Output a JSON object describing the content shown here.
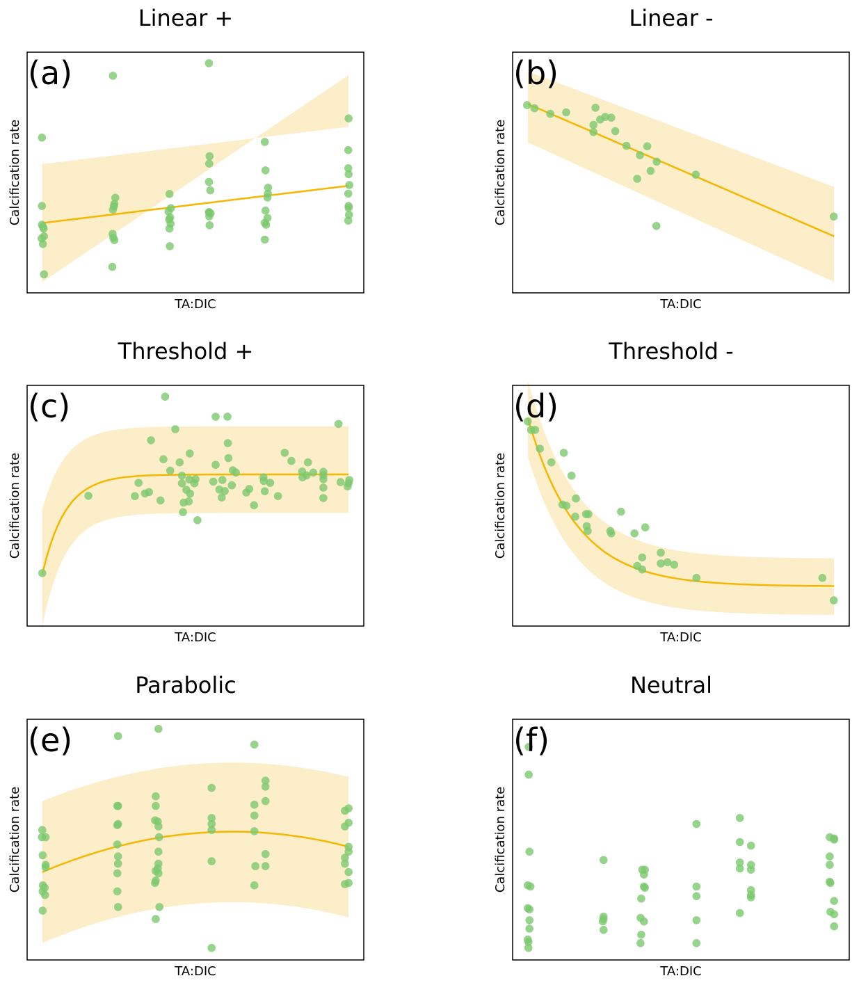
{
  "style": {
    "point_color": "#7cc86e",
    "line_color": "#f5b700",
    "band_color": "#fceec9",
    "frame_color": "#000000"
  },
  "chart_data": [
    {
      "type": "scatter",
      "panel": "(a)",
      "title": "Linear +",
      "xlabel": "TA:DIC",
      "ylabel": "Calcification rate",
      "xlim": [
        0,
        1
      ],
      "ylim": [
        0,
        1
      ],
      "points": [
        [
          0.044,
          0.645
        ],
        [
          0.044,
          0.361
        ],
        [
          0.044,
          0.283
        ],
        [
          0.047,
          0.275
        ],
        [
          0.043,
          0.226
        ],
        [
          0.047,
          0.203
        ],
        [
          0.05,
          0.235
        ],
        [
          0.049,
          0.267
        ],
        [
          0.05,
          0.077
        ],
        [
          0.255,
          0.902
        ],
        [
          0.262,
          0.395
        ],
        [
          0.259,
          0.37
        ],
        [
          0.255,
          0.346
        ],
        [
          0.258,
          0.36
        ],
        [
          0.254,
          0.245
        ],
        [
          0.256,
          0.229
        ],
        [
          0.259,
          0.219
        ],
        [
          0.253,
          0.108
        ],
        [
          0.423,
          0.411
        ],
        [
          0.427,
          0.352
        ],
        [
          0.42,
          0.338
        ],
        [
          0.422,
          0.305
        ],
        [
          0.426,
          0.287
        ],
        [
          0.423,
          0.267
        ],
        [
          0.425,
          0.313
        ],
        [
          0.424,
          0.194
        ],
        [
          0.54,
          0.954
        ],
        [
          0.542,
          0.568
        ],
        [
          0.541,
          0.537
        ],
        [
          0.54,
          0.461
        ],
        [
          0.544,
          0.426
        ],
        [
          0.541,
          0.335
        ],
        [
          0.545,
          0.33
        ],
        [
          0.542,
          0.281
        ],
        [
          0.54,
          0.335
        ],
        [
          0.541,
          0.318
        ],
        [
          0.706,
          0.627
        ],
        [
          0.708,
          0.509
        ],
        [
          0.716,
          0.437
        ],
        [
          0.715,
          0.412
        ],
        [
          0.714,
          0.396
        ],
        [
          0.708,
          0.342
        ],
        [
          0.714,
          0.311
        ],
        [
          0.706,
          0.291
        ],
        [
          0.71,
          0.283
        ],
        [
          0.706,
          0.221
        ],
        [
          0.955,
          0.725
        ],
        [
          0.954,
          0.593
        ],
        [
          0.954,
          0.518
        ],
        [
          0.955,
          0.493
        ],
        [
          0.957,
          0.448
        ],
        [
          0.954,
          0.412
        ],
        [
          0.955,
          0.361
        ],
        [
          0.956,
          0.324
        ],
        [
          0.955,
          0.353
        ],
        [
          0.954,
          0.3
        ]
      ],
      "fit": {
        "model": "linear",
        "x": [
          0.045,
          0.955
        ],
        "y": [
          0.29,
          0.445
        ],
        "band_lower": [
          0.045,
          0.905
        ],
        "band_upper": [
          0.535,
          0.69
        ]
      }
    },
    {
      "type": "scatter",
      "panel": "(b)",
      "title": "Linear -",
      "xlabel": "TA:DIC",
      "ylabel": "Calcification rate",
      "xlim": [
        0,
        1
      ],
      "ylim": [
        0,
        1
      ],
      "points": [
        [
          0.043,
          0.78
        ],
        [
          0.065,
          0.767
        ],
        [
          0.112,
          0.744
        ],
        [
          0.159,
          0.75
        ],
        [
          0.246,
          0.769
        ],
        [
          0.24,
          0.698
        ],
        [
          0.24,
          0.668
        ],
        [
          0.26,
          0.72
        ],
        [
          0.275,
          0.731
        ],
        [
          0.293,
          0.728
        ],
        [
          0.305,
          0.672
        ],
        [
          0.338,
          0.611
        ],
        [
          0.4,
          0.609
        ],
        [
          0.41,
          0.507
        ],
        [
          0.378,
          0.572
        ],
        [
          0.37,
          0.474
        ],
        [
          0.428,
          0.545
        ],
        [
          0.544,
          0.491
        ],
        [
          0.427,
          0.278
        ],
        [
          0.954,
          0.317
        ]
      ],
      "fit": {
        "model": "linear",
        "x": [
          0.045,
          0.955
        ],
        "y": [
          0.785,
          0.235
        ],
        "band_lower": [
          0.625,
          0.045
        ],
        "band_upper": [
          0.92,
          0.44
        ]
      }
    },
    {
      "type": "scatter",
      "panel": "(c)",
      "title": "Threshold +",
      "xlabel": "TA:DIC",
      "ylabel": "Calcification rate",
      "xlim": [
        0,
        1
      ],
      "ylim": [
        0,
        1
      ],
      "points": [
        [
          0.045,
          0.22
        ],
        [
          0.182,
          0.541
        ],
        [
          0.41,
          0.953
        ],
        [
          0.44,
          0.818
        ],
        [
          0.56,
          0.87
        ],
        [
          0.595,
          0.87
        ],
        [
          0.925,
          0.84
        ],
        [
          0.368,
          0.772
        ],
        [
          0.425,
          0.646
        ],
        [
          0.483,
          0.717
        ],
        [
          0.453,
          0.68
        ],
        [
          0.405,
          0.693
        ],
        [
          0.331,
          0.595
        ],
        [
          0.35,
          0.551
        ],
        [
          0.362,
          0.557
        ],
        [
          0.32,
          0.54
        ],
        [
          0.396,
          0.522
        ],
        [
          0.482,
          0.609
        ],
        [
          0.46,
          0.625
        ],
        [
          0.5,
          0.61
        ],
        [
          0.46,
          0.593
        ],
        [
          0.497,
          0.593
        ],
        [
          0.465,
          0.513
        ],
        [
          0.463,
          0.473
        ],
        [
          0.48,
          0.518
        ],
        [
          0.473,
          0.566
        ],
        [
          0.484,
          0.55
        ],
        [
          0.506,
          0.44
        ],
        [
          0.56,
          0.67
        ],
        [
          0.598,
          0.698
        ],
        [
          0.596,
          0.76
        ],
        [
          0.553,
          0.6
        ],
        [
          0.58,
          0.607
        ],
        [
          0.608,
          0.585
        ],
        [
          0.611,
          0.647
        ],
        [
          0.62,
          0.638
        ],
        [
          0.571,
          0.567
        ],
        [
          0.578,
          0.534
        ],
        [
          0.587,
          0.561
        ],
        [
          0.651,
          0.555
        ],
        [
          0.66,
          0.57
        ],
        [
          0.674,
          0.502
        ],
        [
          0.702,
          0.618
        ],
        [
          0.703,
          0.603
        ],
        [
          0.722,
          0.595
        ],
        [
          0.706,
          0.56
        ],
        [
          0.745,
          0.54
        ],
        [
          0.765,
          0.72
        ],
        [
          0.785,
          0.686
        ],
        [
          0.817,
          0.642
        ],
        [
          0.818,
          0.618
        ],
        [
          0.834,
          0.68
        ],
        [
          0.85,
          0.638
        ],
        [
          0.83,
          0.626
        ],
        [
          0.88,
          0.641
        ],
        [
          0.88,
          0.627
        ],
        [
          0.88,
          0.61
        ],
        [
          0.88,
          0.575
        ],
        [
          0.88,
          0.532
        ],
        [
          0.931,
          0.598
        ],
        [
          0.957,
          0.607
        ],
        [
          0.955,
          0.594
        ],
        [
          0.952,
          0.58
        ]
      ],
      "fit": {
        "model": "threshold",
        "x0": 0.045,
        "x1": 0.955,
        "y0": 0.215,
        "plateau": 0.63,
        "rate": 14.6,
        "band_lower_offset": -0.16,
        "band_upper_offset": 0.2
      }
    },
    {
      "type": "scatter",
      "panel": "(d)",
      "title": "Threshold -",
      "xlabel": "TA:DIC",
      "ylabel": "Calcification rate",
      "xlim": [
        0,
        1
      ],
      "ylim": [
        0,
        1
      ],
      "points": [
        [
          0.045,
          0.85
        ],
        [
          0.055,
          0.815
        ],
        [
          0.067,
          0.815
        ],
        [
          0.081,
          0.737
        ],
        [
          0.115,
          0.68
        ],
        [
          0.152,
          0.72
        ],
        [
          0.175,
          0.625
        ],
        [
          0.148,
          0.505
        ],
        [
          0.16,
          0.5
        ],
        [
          0.188,
          0.53
        ],
        [
          0.186,
          0.455
        ],
        [
          0.218,
          0.465
        ],
        [
          0.225,
          0.465
        ],
        [
          0.22,
          0.415
        ],
        [
          0.223,
          0.395
        ],
        [
          0.29,
          0.395
        ],
        [
          0.293,
          0.385
        ],
        [
          0.322,
          0.475
        ],
        [
          0.362,
          0.385
        ],
        [
          0.394,
          0.41
        ],
        [
          0.385,
          0.285
        ],
        [
          0.385,
          0.235
        ],
        [
          0.37,
          0.25
        ],
        [
          0.44,
          0.305
        ],
        [
          0.44,
          0.26
        ],
        [
          0.46,
          0.265
        ],
        [
          0.48,
          0.255
        ],
        [
          0.546,
          0.2
        ],
        [
          0.92,
          0.2
        ],
        [
          0.954,
          0.107
        ]
      ],
      "fit": {
        "model": "threshold",
        "x0": 0.045,
        "x1": 0.955,
        "y0": 0.865,
        "plateau": 0.165,
        "rate": 6.95,
        "band_lower_offset": -0.12,
        "band_upper_offset": 0.115
      }
    },
    {
      "type": "scatter",
      "panel": "(e)",
      "title": "Parabolic",
      "xlabel": "TA:DIC",
      "ylabel": "Calcification rate",
      "xlim": [
        0,
        1
      ],
      "ylim": [
        0,
        1
      ],
      "points": [
        [
          0.045,
          0.54
        ],
        [
          0.044,
          0.51
        ],
        [
          0.055,
          0.51
        ],
        [
          0.046,
          0.435
        ],
        [
          0.055,
          0.395
        ],
        [
          0.055,
          0.385
        ],
        [
          0.047,
          0.31
        ],
        [
          0.046,
          0.285
        ],
        [
          0.052,
          0.3
        ],
        [
          0.053,
          0.27
        ],
        [
          0.046,
          0.205
        ],
        [
          0.27,
          0.93
        ],
        [
          0.27,
          0.64
        ],
        [
          0.268,
          0.64
        ],
        [
          0.268,
          0.56
        ],
        [
          0.27,
          0.565
        ],
        [
          0.268,
          0.48
        ],
        [
          0.27,
          0.43
        ],
        [
          0.27,
          0.4
        ],
        [
          0.268,
          0.36
        ],
        [
          0.268,
          0.285
        ],
        [
          0.27,
          0.22
        ],
        [
          0.39,
          0.96
        ],
        [
          0.382,
          0.68
        ],
        [
          0.382,
          0.64
        ],
        [
          0.38,
          0.58
        ],
        [
          0.388,
          0.575
        ],
        [
          0.39,
          0.555
        ],
        [
          0.392,
          0.51
        ],
        [
          0.39,
          0.45
        ],
        [
          0.39,
          0.4
        ],
        [
          0.39,
          0.36
        ],
        [
          0.382,
          0.37
        ],
        [
          0.382,
          0.33
        ],
        [
          0.388,
          0.38
        ],
        [
          0.38,
          0.32
        ],
        [
          0.393,
          0.22
        ],
        [
          0.382,
          0.17
        ],
        [
          0.548,
          0.715
        ],
        [
          0.548,
          0.59
        ],
        [
          0.548,
          0.565
        ],
        [
          0.548,
          0.54
        ],
        [
          0.548,
          0.41
        ],
        [
          0.548,
          0.05
        ],
        [
          0.675,
          0.895
        ],
        [
          0.675,
          0.645
        ],
        [
          0.675,
          0.6
        ],
        [
          0.675,
          0.535
        ],
        [
          0.675,
          0.31
        ],
        [
          0.678,
          0.39
        ],
        [
          0.708,
          0.745
        ],
        [
          0.708,
          0.72
        ],
        [
          0.708,
          0.66
        ],
        [
          0.708,
          0.44
        ],
        [
          0.708,
          0.39
        ],
        [
          0.944,
          0.62
        ],
        [
          0.955,
          0.63
        ],
        [
          0.955,
          0.57
        ],
        [
          0.944,
          0.555
        ],
        [
          0.955,
          0.47
        ],
        [
          0.955,
          0.45
        ],
        [
          0.944,
          0.425
        ],
        [
          0.944,
          0.4
        ],
        [
          0.955,
          0.365
        ],
        [
          0.944,
          0.315
        ],
        [
          0.955,
          0.32
        ]
      ],
      "fit": {
        "model": "quadratic",
        "x0": 0.045,
        "x1": 0.955,
        "vertex_x": 0.61,
        "vertex_y": 0.533,
        "y_at_x0": 0.365,
        "band_lower_vertex": 0.24,
        "band_lower_at_x0": 0.07,
        "band_upper_vertex": 0.82,
        "band_upper_at_x0": 0.66
      }
    },
    {
      "type": "scatter",
      "panel": "(f)",
      "title": "Neutral",
      "xlabel": "TA:DIC",
      "ylabel": "Calcification rate",
      "xlim": [
        0,
        1
      ],
      "ylim": [
        0,
        1
      ],
      "points": [
        [
          0.048,
          0.885
        ],
        [
          0.048,
          0.77
        ],
        [
          0.05,
          0.45
        ],
        [
          0.045,
          0.31
        ],
        [
          0.053,
          0.305
        ],
        [
          0.045,
          0.215
        ],
        [
          0.05,
          0.21
        ],
        [
          0.05,
          0.165
        ],
        [
          0.05,
          0.13
        ],
        [
          0.045,
          0.085
        ],
        [
          0.047,
          0.075
        ],
        [
          0.047,
          0.05
        ],
        [
          0.27,
          0.415
        ],
        [
          0.27,
          0.18
        ],
        [
          0.27,
          0.17
        ],
        [
          0.268,
          0.16
        ],
        [
          0.27,
          0.125
        ],
        [
          0.385,
          0.375
        ],
        [
          0.393,
          0.375
        ],
        [
          0.39,
          0.355
        ],
        [
          0.39,
          0.305
        ],
        [
          0.393,
          0.3
        ],
        [
          0.382,
          0.255
        ],
        [
          0.38,
          0.175
        ],
        [
          0.39,
          0.16
        ],
        [
          0.382,
          0.105
        ],
        [
          0.38,
          0.07
        ],
        [
          0.546,
          0.565
        ],
        [
          0.546,
          0.305
        ],
        [
          0.546,
          0.265
        ],
        [
          0.546,
          0.165
        ],
        [
          0.546,
          0.07
        ],
        [
          0.675,
          0.59
        ],
        [
          0.675,
          0.49
        ],
        [
          0.708,
          0.475
        ],
        [
          0.675,
          0.405
        ],
        [
          0.708,
          0.395
        ],
        [
          0.675,
          0.38
        ],
        [
          0.708,
          0.375
        ],
        [
          0.708,
          0.29
        ],
        [
          0.708,
          0.27
        ],
        [
          0.708,
          0.26
        ],
        [
          0.675,
          0.195
        ],
        [
          0.942,
          0.51
        ],
        [
          0.955,
          0.5
        ],
        [
          0.955,
          0.505
        ],
        [
          0.942,
          0.43
        ],
        [
          0.942,
          0.395
        ],
        [
          0.942,
          0.325
        ],
        [
          0.944,
          0.32
        ],
        [
          0.955,
          0.245
        ],
        [
          0.944,
          0.2
        ],
        [
          0.955,
          0.19
        ],
        [
          0.955,
          0.14
        ]
      ],
      "fit": null
    }
  ]
}
